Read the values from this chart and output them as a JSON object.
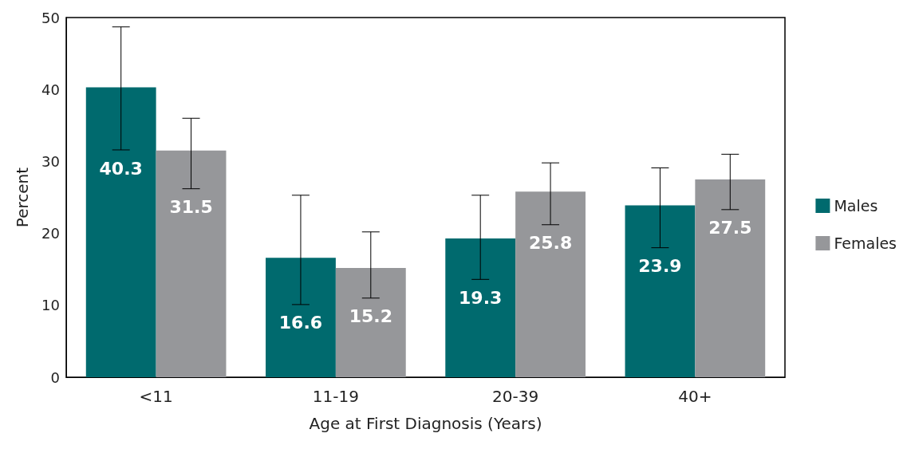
{
  "chart_data": {
    "type": "bar",
    "xlabel": "Age at First Diagnosis (Years)",
    "ylabel": "Percent",
    "categories": [
      "<11",
      "11-19",
      "20-39",
      "40+"
    ],
    "series": [
      {
        "name": "Males",
        "color": "#006a6e",
        "values": [
          40.3,
          16.6,
          19.3,
          23.9
        ],
        "errors": [
          [
            31.6,
            48.7
          ],
          [
            10.1,
            25.3
          ],
          [
            13.6,
            25.3
          ],
          [
            18.0,
            29.1
          ]
        ]
      },
      {
        "name": "Females",
        "color": "#96979a",
        "values": [
          31.5,
          15.2,
          25.8,
          27.5
        ],
        "errors": [
          [
            26.2,
            36.0
          ],
          [
            11.0,
            20.2
          ],
          [
            21.2,
            29.8
          ],
          [
            23.3,
            31.0
          ]
        ]
      }
    ],
    "ylim": [
      0,
      50
    ],
    "yticks": [
      0,
      10,
      20,
      30,
      40,
      50
    ],
    "grid": false,
    "legend": "right",
    "data_labels": true
  }
}
